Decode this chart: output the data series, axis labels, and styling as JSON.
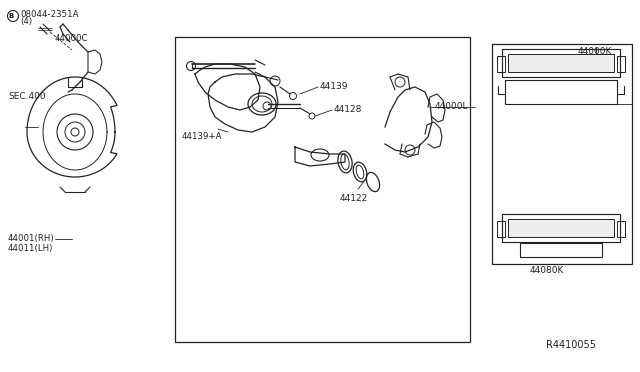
{
  "bg_color": "#ffffff",
  "fig_width": 6.4,
  "fig_height": 3.72,
  "dpi": 100,
  "tc": "#222222",
  "dc": "#222222",
  "labels": {
    "bolt_ref": "®08044-2351A\n   (4)",
    "44000C": "44000C",
    "SEC400": "SEC.400",
    "44001": "44001(RH)",
    "44011": "44011(LH)",
    "44139": "44139",
    "44128": "44128",
    "44139A": "44139+A",
    "44122": "44122",
    "44000L": "44000L",
    "44000K": "44000K",
    "44080K": "44080K",
    "ref_num": "R4410055"
  }
}
